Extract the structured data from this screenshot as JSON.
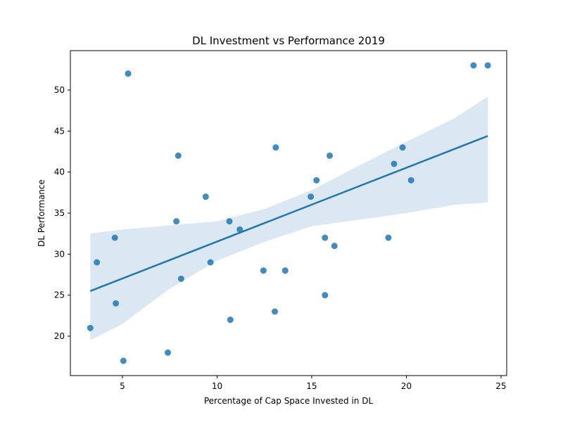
{
  "chart_data": {
    "type": "scatter",
    "title": "DL Investment vs Performance 2019",
    "xlabel": "Percentage of Cap Space Invested in DL",
    "ylabel": "DL Performance",
    "xlim": [
      2.25,
      25.3
    ],
    "ylim": [
      15.2,
      54.8
    ],
    "xticks": [
      5,
      10,
      15,
      20,
      25
    ],
    "yticks": [
      20,
      25,
      30,
      35,
      40,
      45,
      50
    ],
    "grid": false,
    "legend": "none",
    "colors": {
      "points": "#1f77b4",
      "line": "#1f77b4",
      "band": "#cfe0ef"
    },
    "points": [
      {
        "x": 3.3,
        "y": 21
      },
      {
        "x": 3.65,
        "y": 29
      },
      {
        "x": 4.6,
        "y": 32
      },
      {
        "x": 4.65,
        "y": 24
      },
      {
        "x": 5.05,
        "y": 17
      },
      {
        "x": 5.3,
        "y": 52
      },
      {
        "x": 7.4,
        "y": 18
      },
      {
        "x": 7.85,
        "y": 34
      },
      {
        "x": 7.95,
        "y": 42
      },
      {
        "x": 8.1,
        "y": 27
      },
      {
        "x": 9.4,
        "y": 37
      },
      {
        "x": 9.65,
        "y": 29
      },
      {
        "x": 10.65,
        "y": 34
      },
      {
        "x": 10.7,
        "y": 22
      },
      {
        "x": 11.2,
        "y": 33
      },
      {
        "x": 12.45,
        "y": 28
      },
      {
        "x": 13.05,
        "y": 23
      },
      {
        "x": 13.1,
        "y": 43
      },
      {
        "x": 13.6,
        "y": 28
      },
      {
        "x": 14.95,
        "y": 37
      },
      {
        "x": 15.25,
        "y": 39
      },
      {
        "x": 15.7,
        "y": 32
      },
      {
        "x": 15.7,
        "y": 25
      },
      {
        "x": 15.95,
        "y": 42
      },
      {
        "x": 16.2,
        "y": 31
      },
      {
        "x": 19.05,
        "y": 32
      },
      {
        "x": 19.35,
        "y": 41
      },
      {
        "x": 19.8,
        "y": 43
      },
      {
        "x": 20.25,
        "y": 39
      },
      {
        "x": 23.55,
        "y": 53
      },
      {
        "x": 24.3,
        "y": 53
      }
    ],
    "regression": {
      "x0": 3.3,
      "y0": 25.5,
      "x1": 24.3,
      "y1": 44.4
    },
    "confidence_band": {
      "x": [
        3.3,
        5,
        7.5,
        10,
        12.5,
        15,
        17.5,
        20,
        22.5,
        24.3
      ],
      "upper": [
        32.5,
        33,
        33.5,
        34,
        35.5,
        37.8,
        40.8,
        43.7,
        46.5,
        49.2
      ],
      "lower": [
        19.5,
        21.5,
        25.8,
        29.2,
        31.5,
        33.4,
        34.2,
        35.0,
        36.0,
        36.3
      ]
    }
  }
}
